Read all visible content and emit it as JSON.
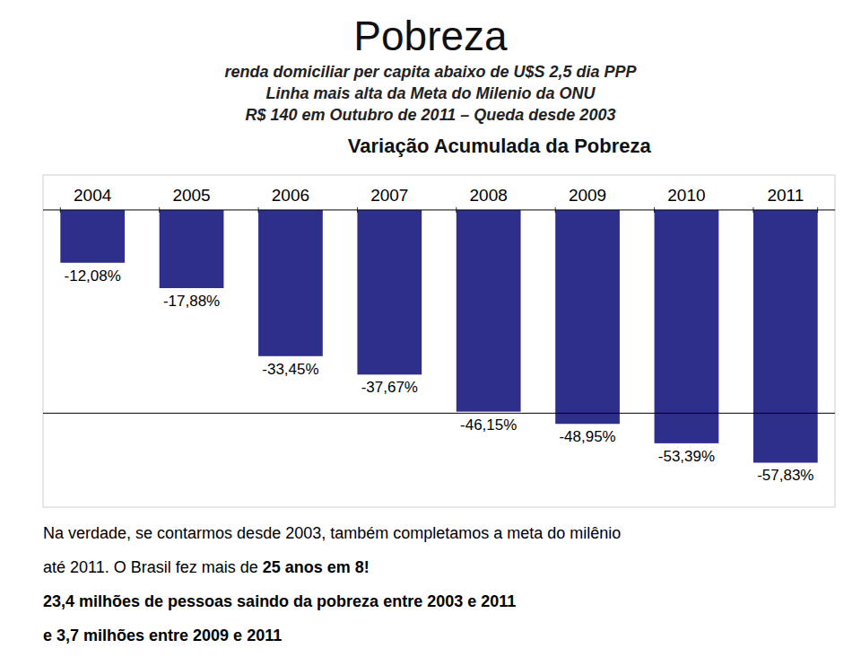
{
  "chart_data": {
    "type": "bar",
    "title": "Pobreza",
    "subtitle": [
      "renda domiciliar per capita abaixo de U$S 2,5 dia PPP",
      "Linha mais alta da Meta do Milenio da ONU",
      "R$ 140 em Outubro de 2011 –  Queda desde 2003"
    ],
    "chart_title": "Variação Acumulada da Pobreza",
    "categories": [
      "2004",
      "2005",
      "2006",
      "2007",
      "2008",
      "2009",
      "2010",
      "2011"
    ],
    "values": [
      -12.08,
      -17.88,
      -33.45,
      -37.67,
      -46.15,
      -48.95,
      -53.39,
      -57.83
    ],
    "value_labels": [
      "-12,08%",
      "-17,88%",
      "-33,45%",
      "-37,67%",
      "-46,15%",
      "-48,95%",
      "-53,39%",
      "-57,83%"
    ],
    "data_labels": true,
    "color": "#2E2E8B",
    "ylim": [
      -68,
      8
    ],
    "yticks": [],
    "tick_labels": "x",
    "grid": false,
    "reference_line": -46.5,
    "footer": [
      [
        "Na verdade, se contarmos desde 2003, também completamos a meta do milênio"
      ],
      [
        "até 2011. O Brasil fez mais de ",
        "25 anos em 8!"
      ],
      [
        "23,4 milhões de pessoas saindo da pobreza entre 2003 e 2011"
      ],
      [
        "e 3,7 milhões entre 2009 e 2011"
      ]
    ]
  }
}
